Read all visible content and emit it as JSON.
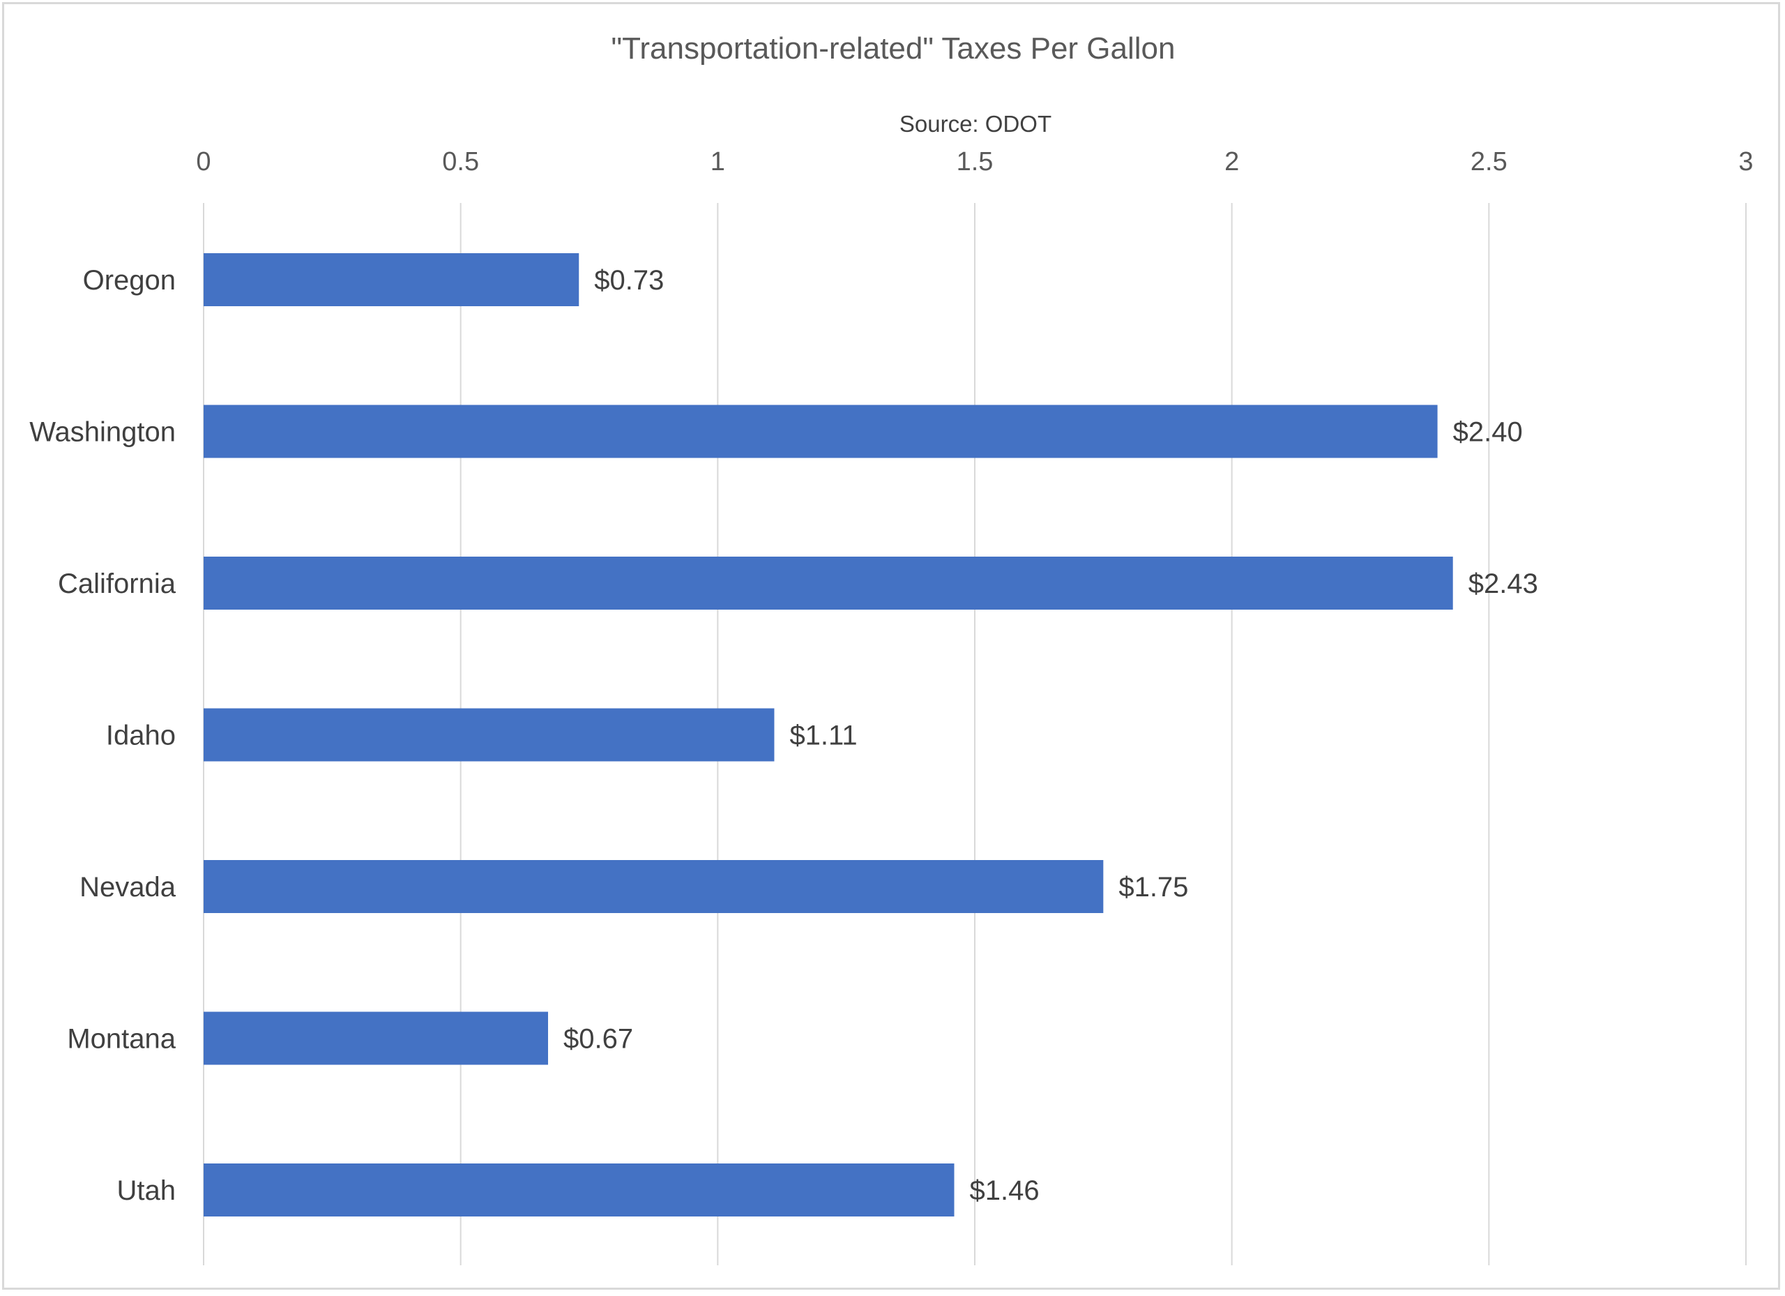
{
  "chart_data": {
    "type": "bar",
    "orientation": "horizontal",
    "title": "\"Transportation-related\" Taxes Per Gallon",
    "subtitle": "Source:  ODOT",
    "xlabel": "",
    "ylabel": "",
    "categories": [
      "Oregon",
      "Washington",
      "California",
      "Idaho",
      "Nevada",
      "Montana",
      "Utah"
    ],
    "values": [
      0.73,
      2.4,
      2.43,
      1.11,
      1.75,
      0.67,
      1.46
    ],
    "data_labels": [
      "$0.73",
      "$2.40",
      "$2.43",
      "$1.11",
      "$1.75",
      "$0.67",
      "$1.46"
    ],
    "xlim": [
      0,
      3
    ],
    "x_ticks": [
      0,
      0.5,
      1,
      1.5,
      2,
      2.5,
      3
    ],
    "x_tick_labels": [
      "0",
      "0.5",
      "1",
      "1.5",
      "2",
      "2.5",
      "3"
    ],
    "axis_position": "top",
    "grid": true,
    "legend": false,
    "colors": {
      "bar": "#4472C4",
      "gridline": "#d9d9d9",
      "text": "#595959"
    }
  }
}
